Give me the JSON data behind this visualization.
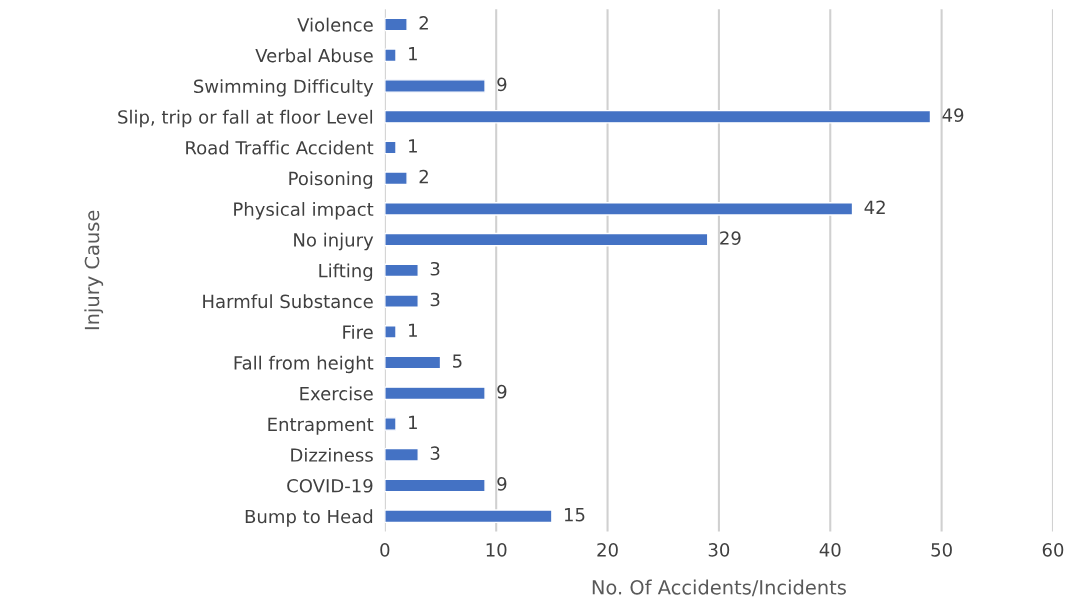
{
  "chart_data": {
    "type": "bar",
    "orientation": "horizontal",
    "xlabel": "No. Of Accidents/Incidents",
    "ylabel": "Injury Cause",
    "categories": [
      "Violence",
      "Verbal Abuse",
      "Swimming Difficulty",
      "Slip, trip or fall at floor Level",
      "Road Traffic Accident",
      "Poisoning",
      "Physical impact",
      "No injury",
      "Lifting",
      "Harmful Substance",
      "Fire",
      "Fall from height",
      "Exercise",
      "Entrapment",
      "Dizziness",
      "COVID-19",
      "Bump to Head"
    ],
    "values": [
      2,
      1,
      9,
      49,
      1,
      2,
      42,
      29,
      3,
      3,
      1,
      5,
      9,
      1,
      3,
      9,
      15
    ],
    "color": "#4472c4",
    "xlim": [
      0,
      60
    ],
    "xticks": [
      0,
      10,
      20,
      30,
      40,
      50,
      60
    ],
    "grid": "x",
    "data_labels": true
  }
}
